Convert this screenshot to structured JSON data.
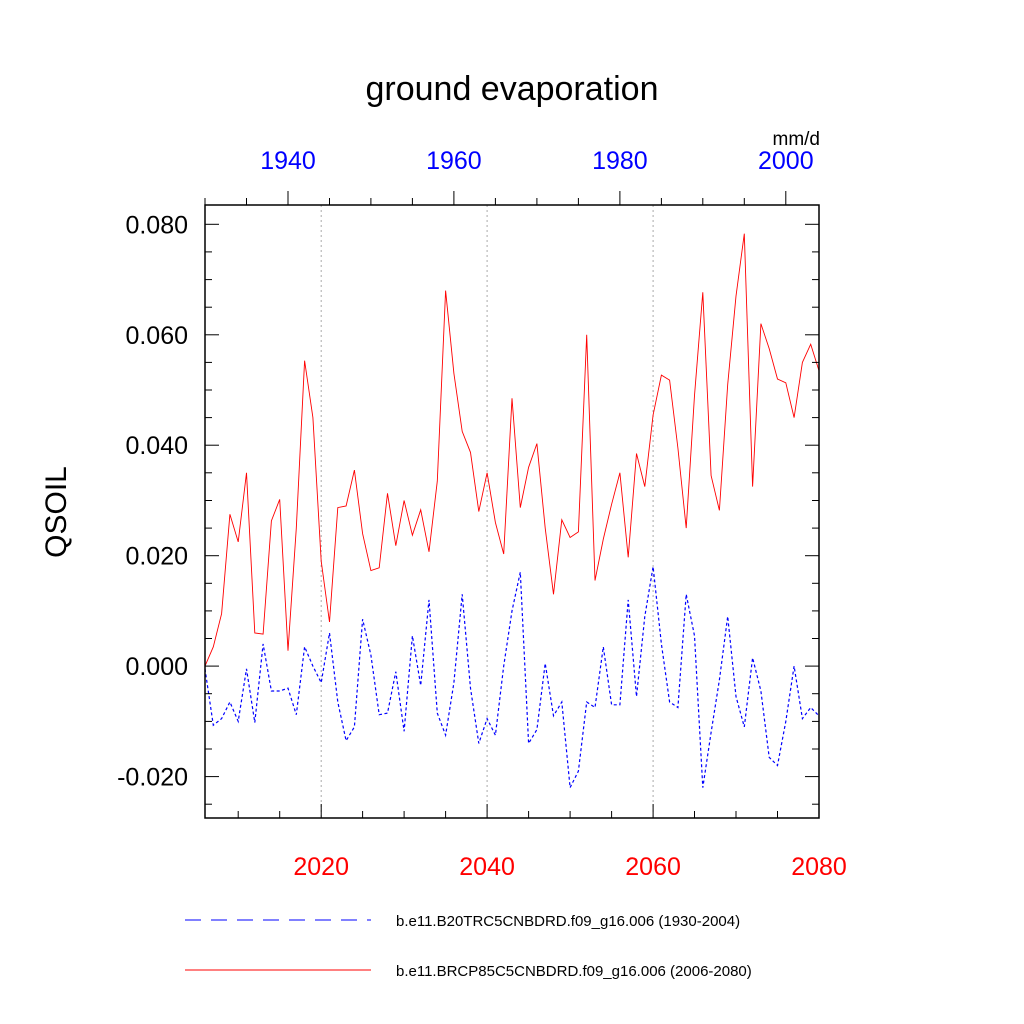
{
  "chart_data": {
    "type": "line",
    "title": "ground evaporation",
    "ylabel": "QSOIL",
    "units": "mm/d",
    "ylim": [
      -0.0275,
      0.0835
    ],
    "y_major_ticks": [
      -0.02,
      0.0,
      0.02,
      0.04,
      0.06,
      0.08
    ],
    "y_tick_labels": [
      "-0.020",
      "0.000",
      "0.020",
      "0.040",
      "0.060",
      "0.080"
    ],
    "bottom_axis": {
      "range": [
        2006,
        2080
      ],
      "major_ticks": [
        2020,
        2040,
        2060,
        2080
      ],
      "labels": [
        "2020",
        "2040",
        "2060",
        "2080"
      ],
      "label_color": "#ff0000"
    },
    "top_axis": {
      "range": [
        1930,
        2004
      ],
      "major_ticks": [
        1940,
        1960,
        1980,
        2000
      ],
      "labels": [
        "1940",
        "1960",
        "1980",
        "2000"
      ],
      "label_color": "#0000ff"
    },
    "grid_vertical_at": [
      2020,
      2040,
      2060
    ],
    "series": [
      {
        "name": "b.e11.B20TRC5CNBDRD.f09_g16.006 (1930-2004)",
        "color": "#0000ff",
        "dash": "dashed",
        "x_start": 2006,
        "values": [
          -0.0005,
          -0.0107,
          -0.0095,
          -0.0065,
          -0.01,
          -0.0005,
          -0.0102,
          0.004,
          -0.0045,
          -0.0045,
          -0.004,
          -0.0088,
          0.0035,
          0.0,
          -0.003,
          0.006,
          -0.0065,
          -0.0135,
          -0.011,
          0.0085,
          0.002,
          -0.0088,
          -0.0085,
          -0.001,
          -0.0118,
          0.0055,
          -0.0035,
          0.012,
          -0.0085,
          -0.0125,
          -0.003,
          0.013,
          -0.004,
          -0.014,
          -0.0095,
          -0.0125,
          0.0,
          0.01,
          0.017,
          -0.014,
          -0.0115,
          0.0005,
          -0.009,
          -0.0065,
          -0.022,
          -0.019,
          -0.0065,
          -0.0075,
          0.0035,
          -0.007,
          -0.007,
          0.012,
          -0.0055,
          0.009,
          0.018,
          0.004,
          -0.0065,
          -0.0075,
          0.013,
          0.0055,
          -0.022,
          -0.012,
          -0.0025,
          0.009,
          -0.0055,
          -0.011,
          0.0015,
          -0.0045,
          -0.0165,
          -0.018,
          -0.01,
          0.0,
          -0.0095,
          -0.0075,
          -0.009
        ]
      },
      {
        "name": "b.e11.BRCP85C5CNBDRD.f09_g16.006 (2006-2080)",
        "color": "#ff0000",
        "dash": "solid",
        "x_start": 2006,
        "values": [
          0.0,
          0.0035,
          0.0095,
          0.0275,
          0.0225,
          0.035,
          0.006,
          0.0058,
          0.0263,
          0.0302,
          0.0028,
          0.025,
          0.0553,
          0.045,
          0.019,
          0.008,
          0.0287,
          0.029,
          0.0355,
          0.024,
          0.0173,
          0.0178,
          0.0313,
          0.0218,
          0.03,
          0.0237,
          0.0283,
          0.0207,
          0.0335,
          0.068,
          0.053,
          0.0425,
          0.0387,
          0.028,
          0.035,
          0.026,
          0.0203,
          0.0485,
          0.0287,
          0.036,
          0.0403,
          0.025,
          0.013,
          0.0265,
          0.0233,
          0.0243,
          0.06,
          0.0155,
          0.023,
          0.0293,
          0.035,
          0.0197,
          0.0385,
          0.0325,
          0.0455,
          0.0527,
          0.0518,
          0.0395,
          0.025,
          0.049,
          0.0677,
          0.0345,
          0.0282,
          0.051,
          0.067,
          0.0783,
          0.0325,
          0.062,
          0.0575,
          0.052,
          0.0513,
          0.045,
          0.055,
          0.0583,
          0.0535
        ]
      }
    ]
  }
}
